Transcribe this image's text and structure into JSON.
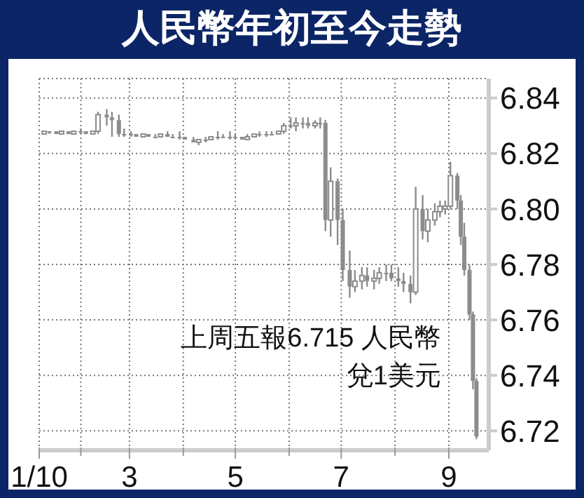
{
  "chart_data": {
    "type": "candlestick",
    "title": "人民幣年初至今走勢",
    "color": "#8c8c8c",
    "annotations": [
      "上周五報6.715 人民幣兌1美元"
    ],
    "x": [
      "2010-01-11",
      "2010-01-14",
      "2010-01-18",
      "2010-01-21",
      "2010-01-25",
      "2010-01-28",
      "2010-02-01",
      "2010-02-04",
      "2010-02-08",
      "2010-02-11",
      "2010-02-16",
      "2010-02-19",
      "2010-02-23",
      "2010-02-26",
      "2010-03-02",
      "2010-03-05",
      "2010-03-09",
      "2010-03-12",
      "2010-03-16",
      "2010-03-19",
      "2010-03-23",
      "2010-03-26",
      "2010-03-30",
      "2010-04-02",
      "2010-04-07",
      "2010-04-10",
      "2010-04-14",
      "2010-04-17",
      "2010-04-21",
      "2010-04-24",
      "2010-04-28",
      "2010-05-01",
      "2010-05-05",
      "2010-05-08",
      "2010-05-12",
      "2010-05-15",
      "2010-05-19",
      "2010-05-22",
      "2010-05-26",
      "2010-05-29",
      "2010-06-02",
      "2010-06-05",
      "2010-06-09",
      "2010-06-12",
      "2010-06-16",
      "2010-06-19",
      "2010-06-22",
      "2010-06-25",
      "2010-06-29",
      "2010-07-02",
      "2010-07-06",
      "2010-07-09",
      "2010-07-13",
      "2010-07-16",
      "2010-07-20",
      "2010-07-23",
      "2010-07-27",
      "2010-07-30",
      "2010-08-03",
      "2010-08-06",
      "2010-08-10",
      "2010-08-13",
      "2010-08-17",
      "2010-08-20",
      "2010-08-24",
      "2010-08-27",
      "2010-08-30",
      "2010-09-02",
      "2010-09-06",
      "2010-09-08",
      "2010-09-10",
      "2010-09-13",
      "2010-09-15",
      "2010-09-17"
    ],
    "ohlc": [
      [
        6.827,
        6.828,
        6.827,
        6.828
      ],
      [
        6.828,
        6.828,
        6.827,
        6.828
      ],
      [
        6.828,
        6.828,
        6.827,
        6.827
      ],
      [
        6.827,
        6.828,
        6.827,
        6.828
      ],
      [
        6.828,
        6.828,
        6.827,
        6.827
      ],
      [
        6.827,
        6.828,
        6.827,
        6.828
      ],
      [
        6.828,
        6.829,
        6.827,
        6.828
      ],
      [
        6.828,
        6.828,
        6.827,
        6.827
      ],
      [
        6.827,
        6.828,
        6.827,
        6.828
      ],
      [
        6.828,
        6.835,
        6.827,
        6.834
      ],
      [
        6.834,
        6.836,
        6.83,
        6.833
      ],
      [
        6.833,
        6.835,
        6.826,
        6.832
      ],
      [
        6.832,
        6.834,
        6.826,
        6.827
      ],
      [
        6.827,
        6.829,
        6.826,
        6.827
      ],
      [
        6.827,
        6.828,
        6.826,
        6.827
      ],
      [
        6.827,
        6.827,
        6.826,
        6.826
      ],
      [
        6.826,
        6.827,
        6.826,
        6.827
      ],
      [
        6.827,
        6.827,
        6.826,
        6.826
      ],
      [
        6.826,
        6.827,
        6.826,
        6.826
      ],
      [
        6.826,
        6.827,
        6.826,
        6.827
      ],
      [
        6.827,
        6.828,
        6.826,
        6.826
      ],
      [
        6.826,
        6.827,
        6.826,
        6.826
      ],
      [
        6.826,
        6.828,
        6.825,
        6.826
      ],
      [
        6.826,
        6.826,
        6.825,
        6.825
      ],
      [
        6.825,
        6.826,
        6.824,
        6.824
      ],
      [
        6.824,
        6.825,
        6.823,
        6.825
      ],
      [
        6.825,
        6.826,
        6.824,
        6.825
      ],
      [
        6.825,
        6.826,
        6.825,
        6.826
      ],
      [
        6.826,
        6.828,
        6.825,
        6.826
      ],
      [
        6.826,
        6.827,
        6.826,
        6.826
      ],
      [
        6.826,
        6.828,
        6.825,
        6.826
      ],
      [
        6.826,
        6.827,
        6.825,
        6.826
      ],
      [
        6.826,
        6.826,
        6.825,
        6.825
      ],
      [
        6.825,
        6.827,
        6.825,
        6.826
      ],
      [
        6.826,
        6.827,
        6.826,
        6.827
      ],
      [
        6.827,
        6.828,
        6.826,
        6.827
      ],
      [
        6.827,
        6.828,
        6.826,
        6.827
      ],
      [
        6.827,
        6.828,
        6.827,
        6.827
      ],
      [
        6.827,
        6.828,
        6.827,
        6.828
      ],
      [
        6.828,
        6.831,
        6.827,
        6.83
      ],
      [
        6.83,
        6.833,
        6.829,
        6.83
      ],
      [
        6.83,
        6.833,
        6.828,
        6.831
      ],
      [
        6.831,
        6.833,
        6.829,
        6.831
      ],
      [
        6.831,
        6.833,
        6.829,
        6.83
      ],
      [
        6.83,
        6.832,
        6.829,
        6.831
      ],
      [
        6.831,
        6.833,
        6.829,
        6.831
      ],
      [
        6.831,
        6.832,
        6.792,
        6.796
      ],
      [
        6.796,
        6.815,
        6.79,
        6.81
      ],
      [
        6.81,
        6.811,
        6.787,
        6.796
      ],
      [
        6.796,
        6.8,
        6.774,
        6.778
      ],
      [
        6.778,
        6.785,
        6.768,
        6.772
      ],
      [
        6.772,
        6.778,
        6.77,
        6.774
      ],
      [
        6.774,
        6.779,
        6.771,
        6.776
      ],
      [
        6.776,
        6.779,
        6.772,
        6.774
      ],
      [
        6.774,
        6.778,
        6.771,
        6.775
      ],
      [
        6.775,
        6.779,
        6.773,
        6.777
      ],
      [
        6.777,
        6.78,
        6.774,
        6.777
      ],
      [
        6.777,
        6.78,
        6.774,
        6.775
      ],
      [
        6.775,
        6.779,
        6.772,
        6.774
      ],
      [
        6.774,
        6.777,
        6.77,
        6.773
      ],
      [
        6.773,
        6.776,
        6.766,
        6.77
      ],
      [
        6.77,
        6.808,
        6.769,
        6.8
      ],
      [
        6.8,
        6.805,
        6.789,
        6.792
      ],
      [
        6.792,
        6.8,
        6.788,
        6.796
      ],
      [
        6.796,
        6.802,
        6.794,
        6.799
      ],
      [
        6.799,
        6.803,
        6.797,
        6.801
      ],
      [
        6.8,
        6.803,
        6.798,
        6.801
      ],
      [
        6.801,
        6.817,
        6.8,
        6.812
      ],
      [
        6.812,
        6.813,
        6.8,
        6.803
      ],
      [
        6.803,
        6.805,
        6.787,
        6.79
      ],
      [
        6.79,
        6.795,
        6.776,
        6.778
      ],
      [
        6.778,
        6.78,
        6.76,
        6.762
      ],
      [
        6.762,
        6.763,
        6.735,
        6.738
      ],
      [
        6.738,
        6.739,
        6.717,
        6.718
      ]
    ],
    "xlim": [
      "2010-01-08",
      "2010-09-24"
    ],
    "xticks": [
      {
        "value": "2010-01-08",
        "label": "1/10"
      },
      {
        "value": "2010-02-01",
        "label": null
      },
      {
        "value": "2010-03-01",
        "label": "3"
      },
      {
        "value": "2010-04-01",
        "label": null
      },
      {
        "value": "2010-05-01",
        "label": "5"
      },
      {
        "value": "2010-06-01",
        "label": null
      },
      {
        "value": "2010-07-01",
        "label": "7"
      },
      {
        "value": "2010-08-01",
        "label": null
      },
      {
        "value": "2010-09-01",
        "label": "9"
      }
    ],
    "ylim": [
      6.713,
      6.847
    ],
    "yticks": [
      6.72,
      6.74,
      6.76,
      6.78,
      {
        "value": 6.8,
        "label": "6.80"
      },
      6.82,
      6.84
    ],
    "grid": true
  }
}
